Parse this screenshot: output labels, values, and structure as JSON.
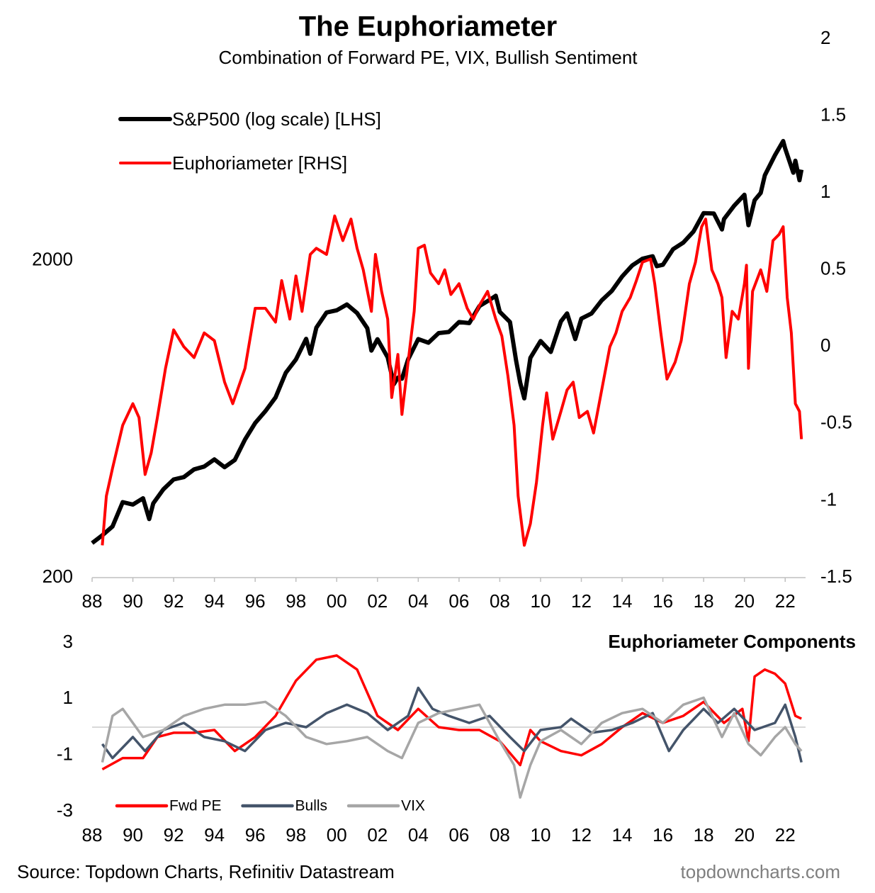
{
  "chart_data": [
    {
      "type": "line",
      "title": "The Euphoriameter",
      "subtitle": "Combination of Forward PE, VIX, Bullish Sentiment",
      "xlim": [
        1988,
        2023
      ],
      "xticks": [
        {
          "value": 1988,
          "label": "88"
        },
        {
          "value": 1990,
          "label": "90"
        },
        {
          "value": 1992,
          "label": "92"
        },
        {
          "value": 1994,
          "label": "94"
        },
        {
          "value": 1996,
          "label": "96"
        },
        {
          "value": 1998,
          "label": "98"
        },
        {
          "value": 2000,
          "label": "00"
        },
        {
          "value": 2002,
          "label": "02"
        },
        {
          "value": 2004,
          "label": "04"
        },
        {
          "value": 2006,
          "label": "06"
        },
        {
          "value": 2008,
          "label": "08"
        },
        {
          "value": 2010,
          "label": "10"
        },
        {
          "value": 2012,
          "label": "12"
        },
        {
          "value": 2014,
          "label": "14"
        },
        {
          "value": 2016,
          "label": "16"
        },
        {
          "value": 2018,
          "label": "18"
        },
        {
          "value": 2020,
          "label": "20"
        },
        {
          "value": 2022,
          "label": "22"
        }
      ],
      "ylim": [
        200,
        10000
      ],
      "yticks": [
        200,
        2000
      ],
      "log_scale": true,
      "y2lim": [
        -1.5,
        2
      ],
      "y2ticks": [
        -1.5,
        -1,
        -0.5,
        0,
        0.5,
        1,
        1.5,
        2
      ],
      "legend": "top-left",
      "series": [
        {
          "name": "S&P500 (log scale) [LHS]",
          "color": "#000000",
          "axis": "y",
          "x": [
            1988.0,
            1988.5,
            1989.0,
            1989.5,
            1990.0,
            1990.5,
            1990.8,
            1991.0,
            1991.5,
            1992.0,
            1992.5,
            1993.0,
            1993.5,
            1994.0,
            1994.5,
            1995.0,
            1995.5,
            1996.0,
            1996.5,
            1997.0,
            1997.5,
            1998.0,
            1998.5,
            1998.7,
            1999.0,
            1999.5,
            2000.0,
            2000.5,
            2001.0,
            2001.5,
            2001.7,
            2002.0,
            2002.5,
            2002.8,
            2003.0,
            2003.2,
            2003.5,
            2004.0,
            2004.5,
            2005.0,
            2005.5,
            2006.0,
            2006.5,
            2007.0,
            2007.5,
            2007.8,
            2008.0,
            2008.5,
            2008.8,
            2009.0,
            2009.2,
            2009.5,
            2010.0,
            2010.5,
            2011.0,
            2011.3,
            2011.7,
            2012.0,
            2012.5,
            2013.0,
            2013.5,
            2014.0,
            2014.5,
            2015.0,
            2015.5,
            2015.7,
            2016.0,
            2016.5,
            2017.0,
            2017.5,
            2018.0,
            2018.5,
            2018.9,
            2019.0,
            2019.5,
            2020.0,
            2020.2,
            2020.5,
            2020.8,
            2021.0,
            2021.5,
            2021.9,
            2022.0,
            2022.4,
            2022.5,
            2022.7,
            2022.8
          ],
          "values": [
            257,
            272,
            290,
            346,
            340,
            356,
            306,
            343,
            380,
            408,
            415,
            439,
            448,
            472,
            446,
            470,
            545,
            615,
            670,
            740,
            885,
            975,
            1133,
            1017,
            1229,
            1372,
            1394,
            1454,
            1366,
            1224,
            1040,
            1130,
            990,
            815,
            855,
            848,
            975,
            1131,
            1101,
            1181,
            1191,
            1280,
            1270,
            1438,
            1503,
            1549,
            1378,
            1280,
            968,
            825,
            735,
            987,
            1115,
            1030,
            1286,
            1363,
            1131,
            1312,
            1362,
            1498,
            1606,
            1782,
            1931,
            2028,
            2063,
            1920,
            1940,
            2173,
            2279,
            2470,
            2823,
            2816,
            2507,
            2704,
            2980,
            3225,
            2585,
            3100,
            3270,
            3714,
            4300,
            4766,
            4515,
            3785,
            4130,
            3585,
            3870
          ]
        },
        {
          "name": "Euphoriameter [RHS]",
          "color": "#ff0000",
          "axis": "y2",
          "x": [
            1988.5,
            1988.7,
            1989.0,
            1989.5,
            1990.0,
            1990.3,
            1990.6,
            1990.9,
            1991.2,
            1991.6,
            1992.0,
            1992.5,
            1993.0,
            1993.5,
            1994.0,
            1994.5,
            1994.9,
            1995.5,
            1996.0,
            1996.5,
            1997.0,
            1997.3,
            1997.7,
            1998.0,
            1998.3,
            1998.7,
            1999.0,
            1999.5,
            1999.9,
            2000.3,
            2000.7,
            2001.0,
            2001.3,
            2001.7,
            2001.9,
            2002.2,
            2002.5,
            2002.7,
            2003.0,
            2003.2,
            2003.5,
            2003.8,
            2004.0,
            2004.3,
            2004.6,
            2005.0,
            2005.3,
            2005.6,
            2006.0,
            2006.4,
            2006.7,
            2007.0,
            2007.4,
            2007.8,
            2008.1,
            2008.4,
            2008.7,
            2008.9,
            2009.2,
            2009.5,
            2009.8,
            2010.1,
            2010.3,
            2010.6,
            2011.0,
            2011.3,
            2011.6,
            2011.9,
            2012.3,
            2012.6,
            2013.0,
            2013.4,
            2013.7,
            2014.0,
            2014.4,
            2014.7,
            2015.0,
            2015.4,
            2015.6,
            2015.9,
            2016.2,
            2016.6,
            2016.9,
            2017.3,
            2017.6,
            2017.9,
            2018.1,
            2018.4,
            2018.7,
            2018.9,
            2019.1,
            2019.4,
            2019.7,
            2020.0,
            2020.1,
            2020.2,
            2020.4,
            2020.8,
            2021.1,
            2021.4,
            2021.7,
            2021.9,
            2022.1,
            2022.3,
            2022.5,
            2022.7,
            2022.8
          ],
          "values": [
            -1.29,
            -0.97,
            -0.79,
            -0.51,
            -0.37,
            -0.46,
            -0.83,
            -0.69,
            -0.46,
            -0.14,
            0.11,
            0,
            -0.07,
            0.09,
            0.04,
            -0.23,
            -0.37,
            -0.14,
            0.25,
            0.25,
            0.16,
            0.43,
            0.18,
            0.46,
            0.23,
            0.6,
            0.64,
            0.6,
            0.85,
            0.69,
            0.83,
            0.64,
            0.5,
            0.23,
            0.6,
            0.36,
            0.18,
            -0.33,
            -0.05,
            -0.44,
            -0.1,
            0.23,
            0.64,
            0.66,
            0.48,
            0.41,
            0.5,
            0.34,
            0.41,
            0.25,
            0.18,
            0.27,
            0.36,
            0.18,
            0.07,
            -0.19,
            -0.51,
            -0.97,
            -1.29,
            -1.15,
            -0.88,
            -0.51,
            -0.3,
            -0.6,
            -0.42,
            -0.28,
            -0.23,
            -0.46,
            -0.42,
            -0.56,
            -0.28,
            0,
            0.09,
            0.23,
            0.32,
            0.43,
            0.55,
            0.57,
            0.41,
            0.09,
            -0.21,
            -0.1,
            0.04,
            0.41,
            0.55,
            0.78,
            0.83,
            0.5,
            0.41,
            0.32,
            -0.07,
            0.23,
            0.18,
            0.41,
            0.53,
            -0.14,
            0.36,
            0.5,
            0.36,
            0.69,
            0.73,
            0.78,
            0.32,
            0.09,
            -0.37,
            -0.42,
            -0.6
          ]
        }
      ]
    },
    {
      "type": "line",
      "title": "Euphoriameter Components",
      "xlim": [
        1988,
        2023
      ],
      "xticks": [
        {
          "value": 1988,
          "label": "88"
        },
        {
          "value": 1990,
          "label": "90"
        },
        {
          "value": 1992,
          "label": "92"
        },
        {
          "value": 1994,
          "label": "94"
        },
        {
          "value": 1996,
          "label": "96"
        },
        {
          "value": 1998,
          "label": "98"
        },
        {
          "value": 2000,
          "label": "00"
        },
        {
          "value": 2002,
          "label": "02"
        },
        {
          "value": 2004,
          "label": "04"
        },
        {
          "value": 2006,
          "label": "06"
        },
        {
          "value": 2008,
          "label": "08"
        },
        {
          "value": 2010,
          "label": "10"
        },
        {
          "value": 2012,
          "label": "12"
        },
        {
          "value": 2014,
          "label": "14"
        },
        {
          "value": 2016,
          "label": "16"
        },
        {
          "value": 2018,
          "label": "18"
        },
        {
          "value": 2020,
          "label": "20"
        },
        {
          "value": 2022,
          "label": "22"
        }
      ],
      "ylim": [
        -3,
        3
      ],
      "yticks": [
        -3,
        -1,
        1,
        3
      ],
      "legend": "bottom-left",
      "series": [
        {
          "name": "Fwd PE",
          "color": "#ff0000",
          "x": [
            1988.5,
            1989.5,
            1990.5,
            1991.2,
            1992,
            1993,
            1994,
            1995,
            1996,
            1997,
            1998,
            1999,
            2000,
            2001,
            2002,
            2003,
            2004,
            2005,
            2006,
            2007,
            2008,
            2009,
            2009.5,
            2010,
            2011,
            2012,
            2013,
            2014,
            2015,
            2016,
            2017,
            2018,
            2019,
            2019.9,
            2020.2,
            2020.5,
            2021,
            2021.5,
            2022,
            2022.5,
            2022.8
          ],
          "values": [
            -1.5,
            -1.1,
            -1.1,
            -0.35,
            -0.2,
            -0.2,
            -0.1,
            -0.85,
            -0.35,
            0.4,
            1.65,
            2.4,
            2.55,
            2.05,
            0.4,
            -0.1,
            0.65,
            0,
            -0.1,
            -0.1,
            -0.5,
            -1.35,
            -0.1,
            -0.5,
            -0.85,
            -1.0,
            -0.6,
            0,
            0.5,
            0.15,
            0.4,
            0.9,
            0.15,
            0.65,
            -0.5,
            1.8,
            2.05,
            1.9,
            1.55,
            0.4,
            0.3
          ]
        },
        {
          "name": "Bulls",
          "color": "#44546a",
          "x": [
            1988.5,
            1989,
            1990,
            1990.6,
            1991.5,
            1992.5,
            1993.5,
            1994.5,
            1995.5,
            1996.5,
            1997.5,
            1998.5,
            1999.5,
            2000.5,
            2001.5,
            2002.5,
            2003.5,
            2004,
            2004.7,
            2005.5,
            2006.5,
            2007.5,
            2008.5,
            2009.2,
            2010,
            2011,
            2011.5,
            2012.5,
            2013.5,
            2014.5,
            2015.5,
            2016.3,
            2017,
            2018,
            2018.7,
            2019.5,
            2020.5,
            2021.5,
            2022,
            2022.5,
            2022.8
          ],
          "values": [
            -0.6,
            -1.1,
            -0.35,
            -0.85,
            -0.1,
            0.15,
            -0.35,
            -0.5,
            -0.85,
            -0.1,
            0.15,
            0,
            0.5,
            0.8,
            0.5,
            -0.1,
            0.4,
            1.4,
            0.65,
            0.4,
            0.15,
            0.4,
            -0.35,
            -0.85,
            -0.1,
            0,
            0.3,
            -0.2,
            -0.1,
            0.15,
            0.5,
            -0.85,
            -0.1,
            0.65,
            0.15,
            0.65,
            -0.1,
            0.15,
            0.8,
            -0.35,
            -1.25
          ]
        },
        {
          "name": "VIX",
          "color": "#a6a6a6",
          "x": [
            1988.5,
            1989,
            1989.5,
            1990.5,
            1991.5,
            1992.5,
            1993.5,
            1994.5,
            1995.5,
            1996.5,
            1997.5,
            1998.5,
            1999.5,
            2000.5,
            2001.5,
            2002.5,
            2003.2,
            2004,
            2005,
            2006,
            2007,
            2008,
            2008.7,
            2009,
            2009.5,
            2010,
            2011,
            2012,
            2013,
            2014,
            2015,
            2016,
            2017,
            2018,
            2018.9,
            2019.5,
            2020.2,
            2020.8,
            2021.5,
            2022,
            2022.5,
            2022.8
          ],
          "values": [
            -1.25,
            0.4,
            0.65,
            -0.35,
            -0.1,
            0.4,
            0.65,
            0.8,
            0.8,
            0.9,
            0.4,
            -0.35,
            -0.6,
            -0.5,
            -0.35,
            -0.85,
            -1.1,
            0.15,
            0.5,
            0.65,
            0.8,
            -0.5,
            -1.35,
            -2.5,
            -1.35,
            -0.5,
            -0.1,
            -0.6,
            0.15,
            0.5,
            0.65,
            0.15,
            0.8,
            1.05,
            -0.35,
            0.5,
            -0.6,
            -1.0,
            -0.35,
            0,
            -0.6,
            -0.85
          ]
        }
      ]
    }
  ],
  "source": "Source: Topdown Charts, Refinitiv Datastream",
  "watermark": "topdowncharts.com"
}
